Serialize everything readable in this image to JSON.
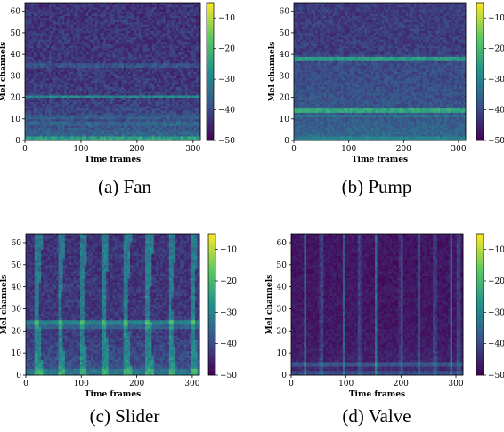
{
  "chart_data": [
    {
      "type": "heatmap",
      "caption": "(a) Fan",
      "xlabel": "Time frames",
      "ylabel": "Mel channels",
      "xlim": [
        0,
        313
      ],
      "ylim": [
        0,
        64
      ],
      "xticks": [
        "0",
        "100",
        "200",
        "300"
      ],
      "yticks": [
        "0",
        "10",
        "20",
        "30",
        "40",
        "50",
        "60"
      ],
      "colorbar": {
        "range": [
          -50,
          -5
        ],
        "ticks": [
          "-10",
          "-20",
          "-30",
          "-40",
          "-50"
        ]
      },
      "colormap": [
        "#440154",
        "#3b528b",
        "#21918c",
        "#5ec962",
        "#fde725"
      ],
      "pattern": "low-frequency energy with horizontal bands near channels 20 and 35"
    },
    {
      "type": "heatmap",
      "caption": "(b) Pump",
      "xlabel": "Time frames",
      "ylabel": "Mel channels",
      "xlim": [
        0,
        313
      ],
      "ylim": [
        0,
        64
      ],
      "xticks": [
        "0",
        "100",
        "200",
        "300"
      ],
      "yticks": [
        "0",
        "10",
        "20",
        "30",
        "40",
        "50",
        "60"
      ],
      "colorbar": {
        "range": [
          -50,
          -5
        ],
        "ticks": [
          "-10",
          "-20",
          "-30",
          "-40",
          "-50"
        ]
      },
      "colormap": [
        "#440154",
        "#3b528b",
        "#21918c",
        "#5ec962",
        "#fde725"
      ],
      "pattern": "strong horizontal bands near channels 14 and 38"
    },
    {
      "type": "heatmap",
      "caption": "(c) Slider",
      "xlabel": "Time frames",
      "ylabel": "Mel channels",
      "xlim": [
        0,
        313
      ],
      "ylim": [
        0,
        64
      ],
      "xticks": [
        "0",
        "100",
        "200",
        "300"
      ],
      "yticks": [
        "0",
        "10",
        "20",
        "30",
        "40",
        "50",
        "60"
      ],
      "colorbar": {
        "range": [
          -50,
          -5
        ],
        "ticks": [
          "-10",
          "-20",
          "-30",
          "-40",
          "-50"
        ]
      },
      "colormap": [
        "#440154",
        "#3b528b",
        "#21918c",
        "#5ec962",
        "#fde725"
      ],
      "pattern": "periodic vertical bursts with a horizontal band near channel 24"
    },
    {
      "type": "heatmap",
      "caption": "(d) Valve",
      "xlabel": "Time frames",
      "ylabel": "Mel channels",
      "xlim": [
        0,
        313
      ],
      "ylim": [
        0,
        64
      ],
      "xticks": [
        "0",
        "100",
        "200",
        "300"
      ],
      "yticks": [
        "0",
        "10",
        "20",
        "30",
        "40",
        "50",
        "60"
      ],
      "colorbar": {
        "range": [
          -50,
          -5
        ],
        "ticks": [
          "-10",
          "-20",
          "-30",
          "-40",
          "-50"
        ]
      },
      "colormap": [
        "#440154",
        "#3b528b",
        "#21918c",
        "#5ec962",
        "#fde725"
      ],
      "pattern": "thin periodic vertical clicks on a dark background"
    }
  ]
}
